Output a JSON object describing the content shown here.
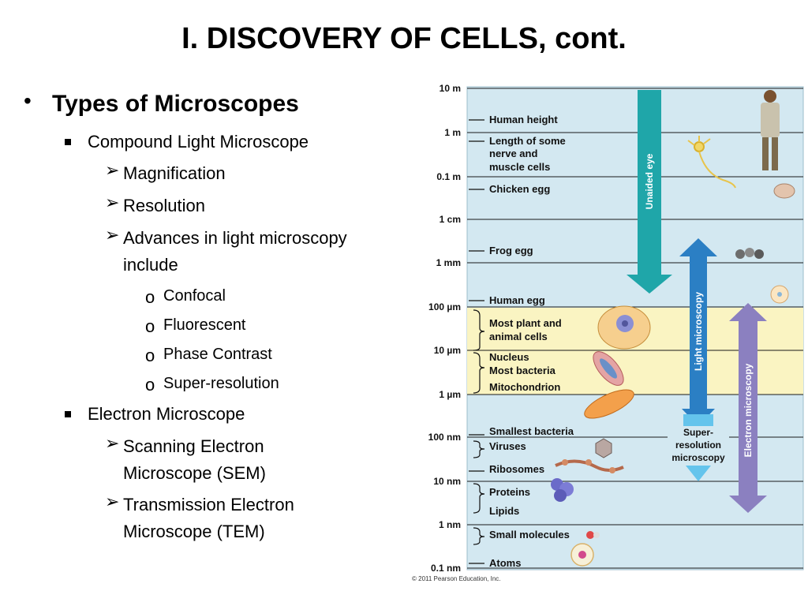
{
  "slide": {
    "title": "I.  DISCOVERY OF CELLS, cont.",
    "bullets": {
      "b1": "Types of Microscopes",
      "b1_1": "Compound Light Microscope",
      "b1_1_1": "Magnification",
      "b1_1_2": "Resolution",
      "b1_1_3a": "Advances in light microscopy",
      "b1_1_3b": "include",
      "b1_1_3_1": "Confocal",
      "b1_1_3_2": "Fluorescent",
      "b1_1_3_3": "Phase Contrast",
      "b1_1_3_4": "Super-resolution",
      "b1_2": "Electron Microscope",
      "b1_2_1a": "Scanning Electron",
      "b1_2_1b": "Microscope (SEM)",
      "b1_2_2a": "Transmission Electron",
      "b1_2_2b": "Microscope (TEM)"
    }
  },
  "figure": {
    "scale_labels": [
      "10 m",
      "1 m",
      "0.1 m",
      "1 cm",
      "1 mm",
      "100 µm",
      "10 µm",
      "1 µm",
      "100 nm",
      "10 nm",
      "1 nm",
      "0.1 nm"
    ],
    "items": {
      "human_height": "Human height",
      "nerve_1": "Length of some",
      "nerve_2": "nerve and",
      "nerve_3": "muscle cells",
      "chicken_egg": "Chicken egg",
      "frog_egg": "Frog egg",
      "human_egg": "Human egg",
      "plant_animal_1": "Most plant and",
      "plant_animal_2": "animal cells",
      "nucleus": "Nucleus",
      "bacteria": "Most bacteria",
      "mitochondrion": "Mitochondrion",
      "smallest_bacteria": "Smallest bacteria",
      "viruses": "Viruses",
      "ribosomes": "Ribosomes",
      "proteins": "Proteins",
      "lipids": "Lipids",
      "small_molecules": "Small molecules",
      "atoms": "Atoms"
    },
    "arrows": {
      "unaided_eye": "Unaided eye",
      "light_microscopy": "Light microscopy",
      "super_1": "Super-",
      "super_2": "resolution",
      "super_3": "microscopy",
      "electron_microscopy": "Electron microscopy"
    },
    "copyright": "© 2011 Pearson Education, Inc.",
    "colors": {
      "panel_blue": "#d3e8f1",
      "band_yellow": "#faf4c2",
      "unaided_eye_arrow": "#1fa6a9",
      "light_arrow": "#2b7fc4",
      "super_arrow": "#64c4ec",
      "electron_arrow": "#8b80c0"
    }
  }
}
